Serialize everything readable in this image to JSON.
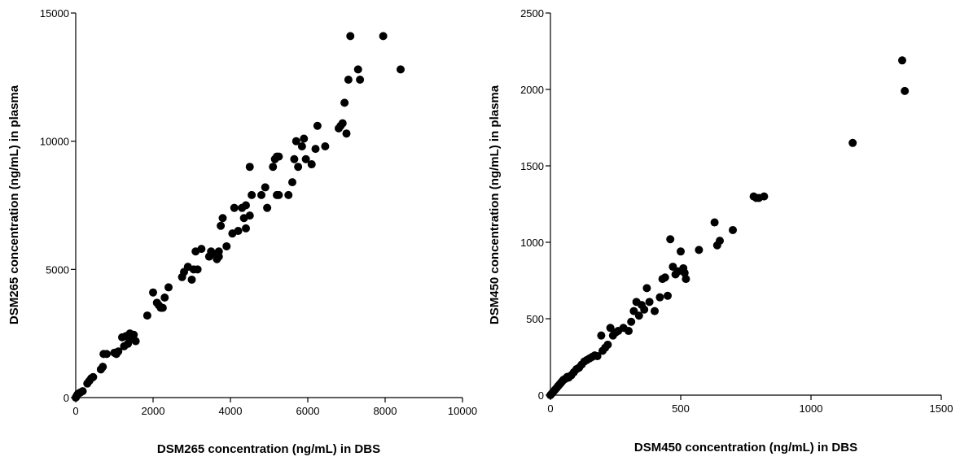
{
  "chart_data": [
    {
      "type": "scatter",
      "title": "",
      "xlabel": "DSM265 concentration (ng/mL) in DBS",
      "ylabel": "DSM265 concentration (ng/mL) in plasma",
      "xlim": [
        0,
        10000
      ],
      "ylim": [
        0,
        15000
      ],
      "x_ticks": [
        "0",
        "2000",
        "4000",
        "6000",
        "8000",
        "10000"
      ],
      "y_ticks": [
        "0",
        "5000",
        "10000",
        "15000"
      ],
      "grid": false,
      "marker_color": "#000000",
      "series": [
        {
          "x": [
            0,
            20,
            40,
            60,
            120,
            180,
            300,
            350,
            400,
            450,
            650,
            700,
            720,
            800,
            1000,
            1050,
            1100,
            1200,
            1250,
            1300,
            1350,
            1400,
            1450,
            1500,
            1550,
            1850,
            2000,
            2100,
            2150,
            2200,
            2250,
            2300,
            2400,
            2750,
            2800,
            2900,
            3000,
            3050,
            3100,
            3150,
            3250,
            3450,
            3500,
            3550,
            3650,
            3700,
            3700,
            3750,
            3800,
            3900,
            4050,
            4100,
            4200,
            4300,
            4350,
            4400,
            4400,
            4500,
            4500,
            4550,
            4800,
            4900,
            4950,
            5100,
            5150,
            5200,
            5200,
            5250,
            5250,
            5500,
            5600,
            5650,
            5700,
            5750,
            5850,
            5900,
            5950,
            6100,
            6200,
            6250,
            6450,
            6800,
            6850,
            6900,
            6950,
            7000,
            7050,
            7100,
            7300,
            7350,
            7950,
            8400
          ],
          "y": [
            0,
            50,
            100,
            150,
            200,
            250,
            550,
            650,
            750,
            800,
            1100,
            1200,
            1700,
            1700,
            1750,
            1700,
            1800,
            2350,
            2000,
            2400,
            2100,
            2500,
            2300,
            2450,
            2200,
            3200,
            4100,
            3700,
            3600,
            3500,
            3500,
            3900,
            4300,
            4700,
            4900,
            5100,
            4600,
            5000,
            5700,
            5000,
            5800,
            5500,
            5700,
            5600,
            5400,
            5500,
            5700,
            6700,
            7000,
            5900,
            6400,
            7400,
            6500,
            7400,
            7000,
            6600,
            7500,
            7100,
            9000,
            7900,
            7900,
            8200,
            7400,
            9000,
            9300,
            7900,
            9400,
            7900,
            9400,
            7900,
            8400,
            9300,
            10000,
            9000,
            9800,
            10100,
            9300,
            9100,
            9700,
            10600,
            9800,
            10500,
            10600,
            10700,
            11500,
            10300,
            12400,
            14100,
            12800,
            12400,
            14100,
            12800
          ]
        }
      ]
    },
    {
      "type": "scatter",
      "title": "",
      "xlabel": "DSM450 concentration (ng/mL) in DBS",
      "ylabel": "DSM450 concentration (ng/mL) in plasma",
      "xlim": [
        0,
        1500
      ],
      "ylim": [
        0,
        2500
      ],
      "x_ticks": [
        "0",
        "500",
        "1000",
        "1500"
      ],
      "y_ticks": [
        "0",
        "500",
        "1000",
        "1500",
        "2000",
        "2500"
      ],
      "grid": false,
      "marker_color": "#000000",
      "series": [
        {
          "x": [
            0,
            5,
            10,
            15,
            20,
            25,
            30,
            35,
            40,
            45,
            50,
            55,
            60,
            65,
            70,
            80,
            90,
            100,
            110,
            120,
            130,
            140,
            150,
            160,
            170,
            180,
            195,
            200,
            210,
            220,
            230,
            240,
            250,
            260,
            280,
            300,
            310,
            320,
            330,
            340,
            350,
            360,
            370,
            380,
            400,
            420,
            430,
            440,
            450,
            460,
            470,
            480,
            490,
            500,
            510,
            515,
            520,
            570,
            630,
            640,
            650,
            700,
            780,
            790,
            800,
            820,
            1160,
            1350,
            1360
          ],
          "y": [
            0,
            10,
            20,
            30,
            40,
            50,
            60,
            70,
            80,
            90,
            100,
            105,
            110,
            120,
            115,
            130,
            150,
            170,
            180,
            200,
            220,
            230,
            240,
            250,
            260,
            255,
            390,
            290,
            310,
            330,
            440,
            390,
            410,
            420,
            440,
            420,
            480,
            550,
            610,
            520,
            590,
            560,
            700,
            610,
            550,
            640,
            760,
            770,
            650,
            1020,
            840,
            790,
            810,
            940,
            830,
            800,
            760,
            950,
            1130,
            980,
            1010,
            1080,
            1300,
            1290,
            1290,
            1300,
            1650,
            2190,
            1990
          ]
        }
      ]
    }
  ]
}
